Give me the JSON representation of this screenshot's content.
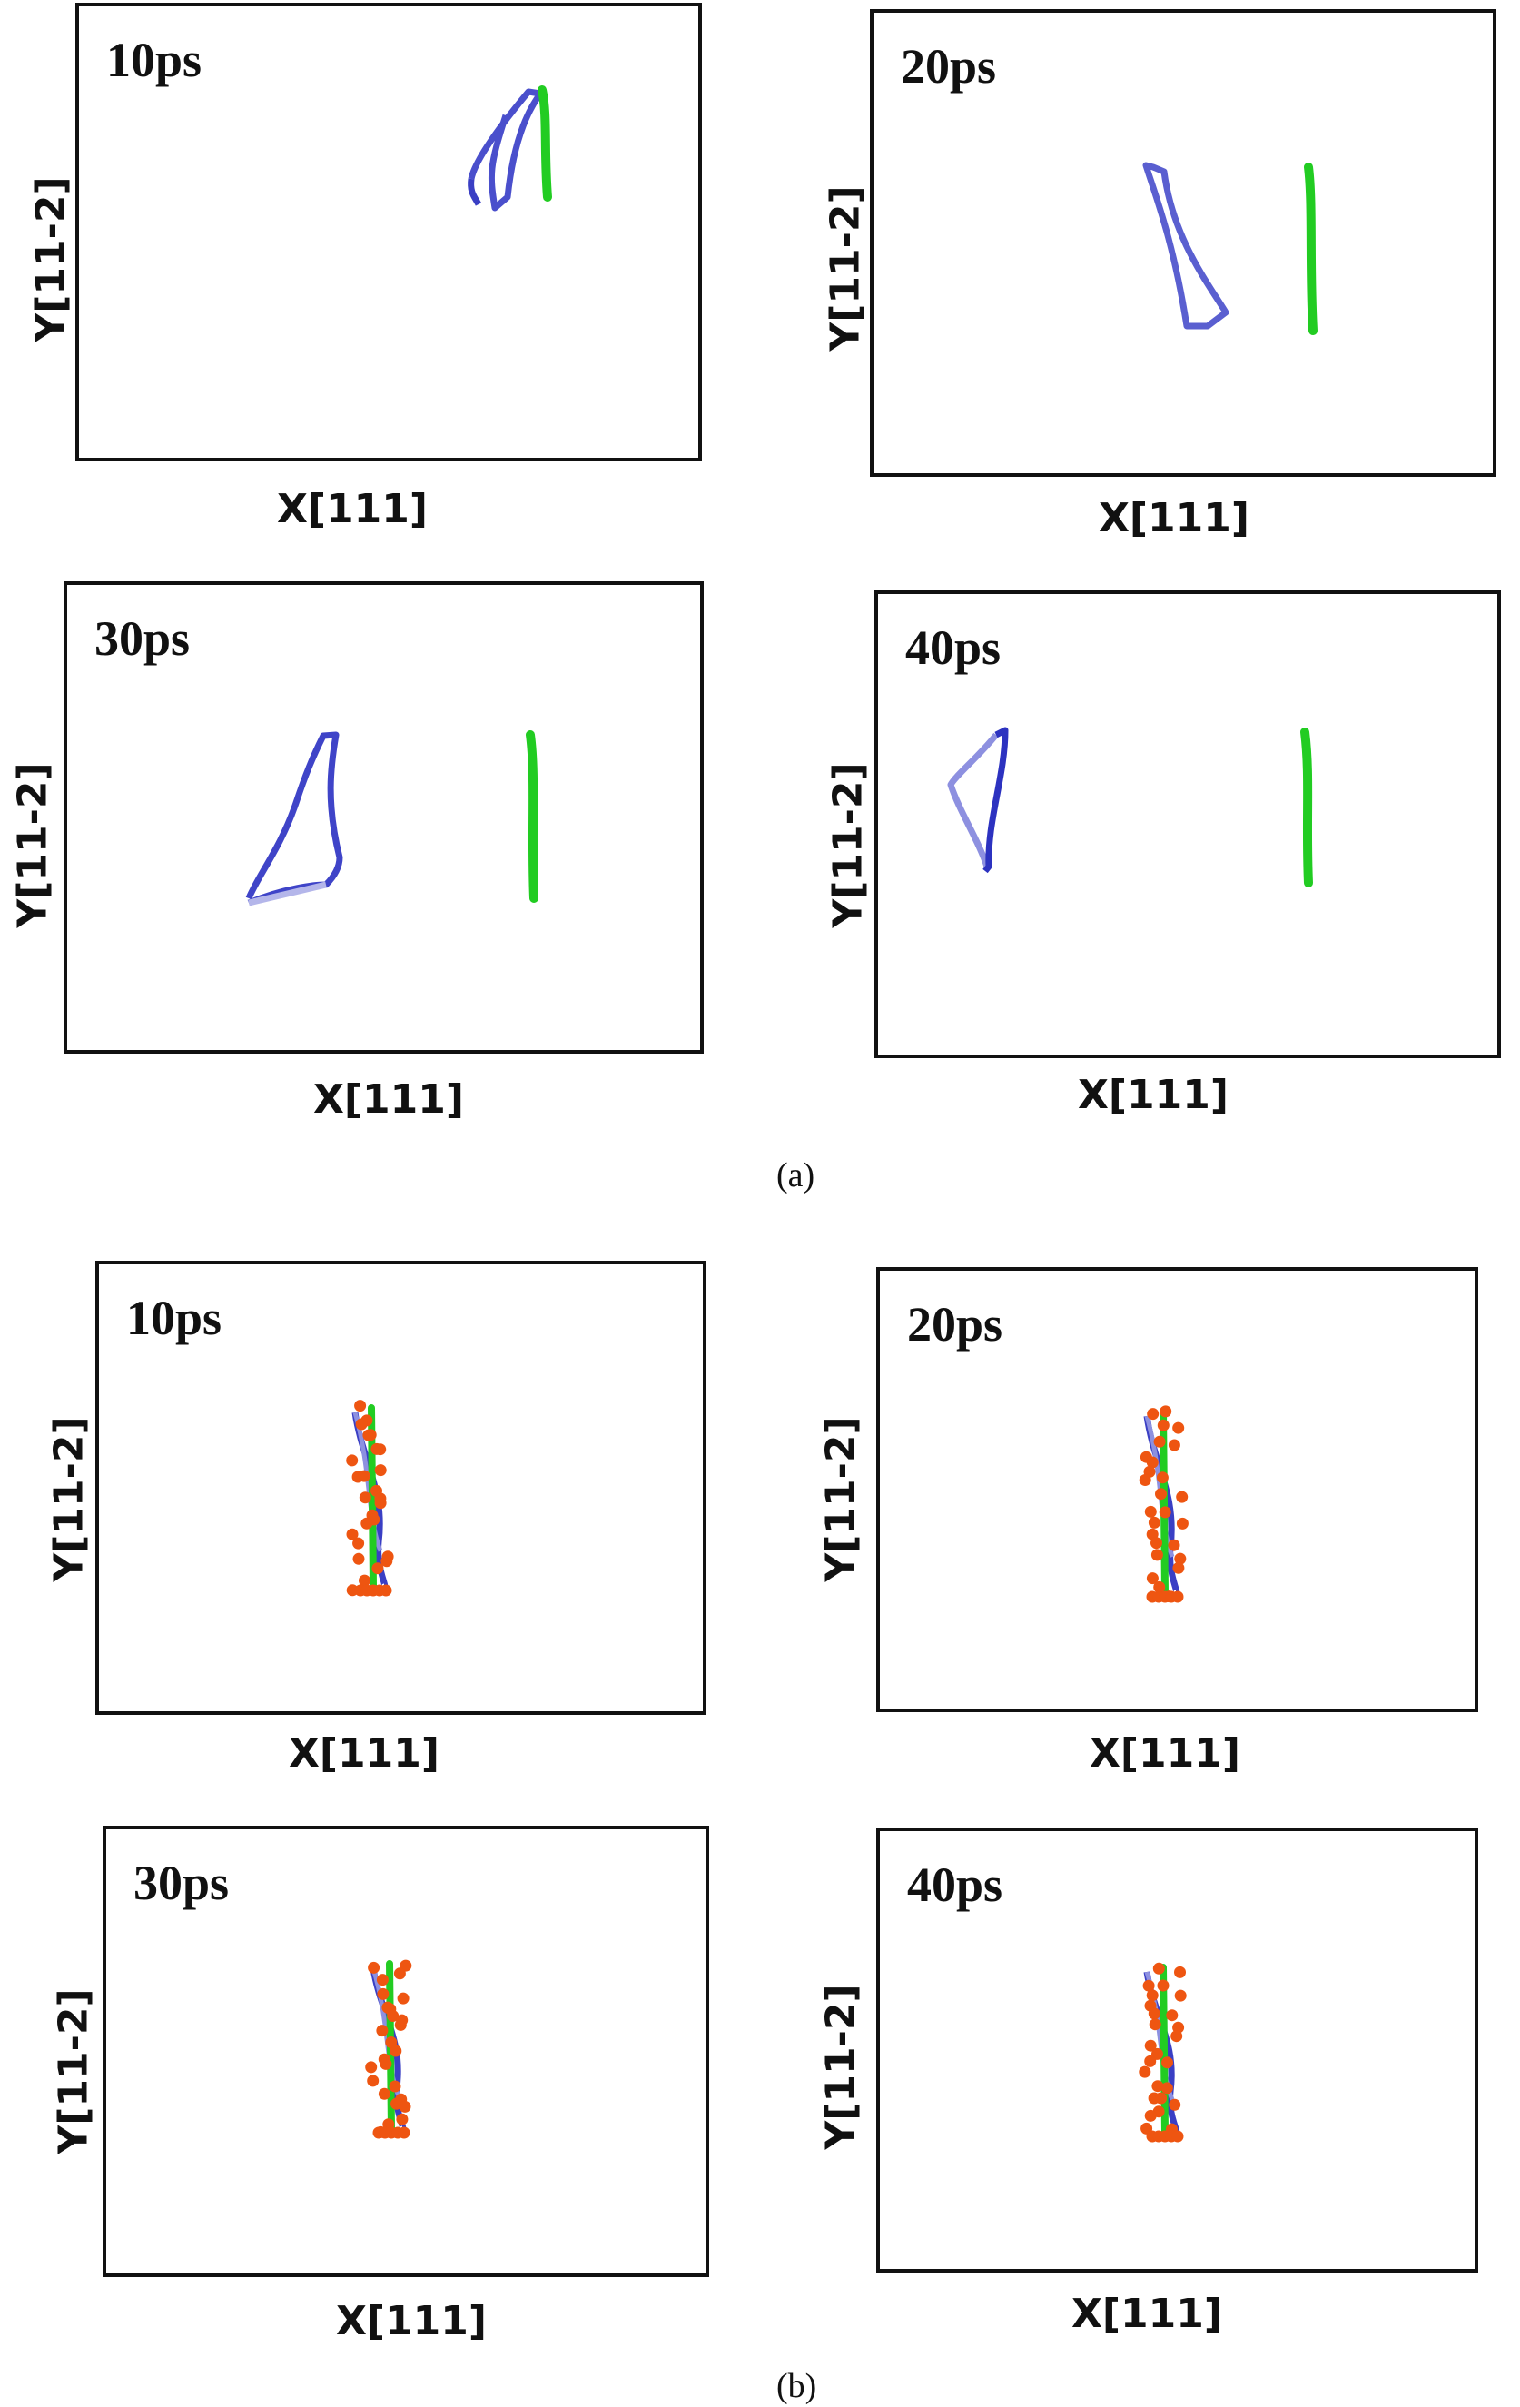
{
  "figure": {
    "caption_a": "(a)",
    "caption_b": "(b)",
    "x_axis_label": "X[111]",
    "y_axis_label": "Y[11-2]",
    "colors": {
      "blue_loop": "#3a3fc4",
      "blue_loop_light": "#8d90e0",
      "green_line": "#22cc22",
      "atoms": "#ee5511"
    }
  },
  "panels_a": [
    {
      "time": "10ps"
    },
    {
      "time": "20ps"
    },
    {
      "time": "30ps"
    },
    {
      "time": "40ps"
    }
  ],
  "panels_b": [
    {
      "time": "10ps"
    },
    {
      "time": "20ps"
    },
    {
      "time": "30ps"
    },
    {
      "time": "40ps"
    }
  ]
}
